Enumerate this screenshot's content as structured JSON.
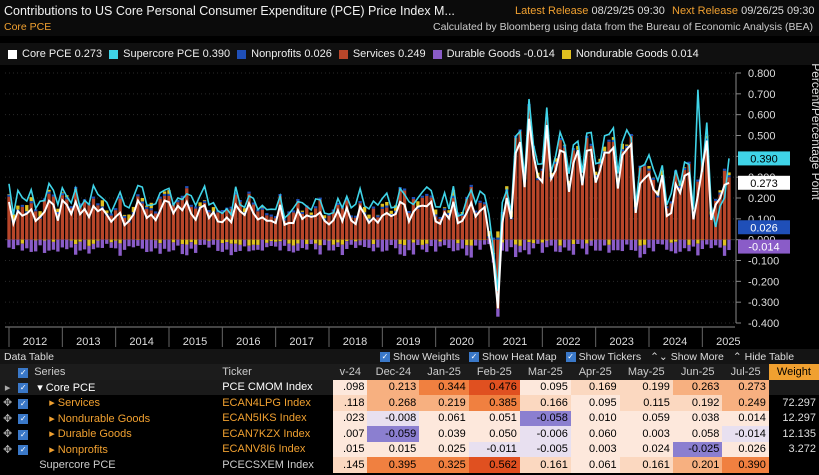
{
  "header": {
    "title": "Contributions to US Core Personal Consumer Expenditure (PCE) Price Index M...",
    "subtitle": "Core PCE",
    "latest_release_label": "Latest Release",
    "latest_release_value": "08/29/25 09:30",
    "next_release_label": "Next Release",
    "next_release_value": "09/26/25 09:30",
    "source": "Calculated by Bloomberg using data from the Bureau of Economic Analysis (BEA)"
  },
  "legend": [
    {
      "label": "Core PCE 0.273",
      "color": "#ffffff"
    },
    {
      "label": "Supercore PCE 0.390",
      "color": "#3fd4e8"
    },
    {
      "label": "Nonprofits 0.026",
      "color": "#1f4fb8"
    },
    {
      "label": "Services 0.249",
      "color": "#b8462a"
    },
    {
      "label": "Durable Goods -0.014",
      "color": "#8a5cc8"
    },
    {
      "label": "Nondurable Goods 0.014",
      "color": "#e0c020"
    }
  ],
  "chart_data": {
    "type": "bar",
    "y_axis_title": "Percent/Percentage Point",
    "ylim": [
      -0.4,
      0.8
    ],
    "y_ticks": [
      "0.800",
      "0.700",
      "0.600",
      "0.500",
      "0.400",
      "0.300",
      "0.200",
      "0.100",
      "0.000",
      "-0.100",
      "-0.200",
      "-0.300",
      "-0.400"
    ],
    "x_ticks": [
      "2012",
      "2013",
      "2014",
      "2015",
      "2016",
      "2017",
      "2018",
      "2019",
      "2020",
      "2021",
      "2022",
      "2023",
      "2024",
      "2025"
    ],
    "end_labels": [
      {
        "text": "0.390",
        "value": 0.39,
        "color": "#3fd4e8"
      },
      {
        "text": "0.273",
        "value": 0.273,
        "color": "#ffffff"
      },
      {
        "text": "0.026",
        "value": 0.026,
        "color": "#1f4fb8"
      },
      {
        "text": "-0.014",
        "value": -0.014,
        "color": "#8a5cc8"
      }
    ],
    "series_colors": {
      "core": "#ffffff",
      "supercore": "#3fd4e8",
      "services": "#b8462a",
      "durable": "#8a5cc8",
      "nondurable": "#e0c020",
      "nonprofits": "#1f4fb8"
    }
  },
  "table_bar": {
    "title": "Data Table",
    "options": [
      "Show Weights",
      "Show Heat Map",
      "Show Tickers"
    ],
    "show_more": "Show More",
    "hide_table": "Hide Table"
  },
  "table": {
    "headers": [
      "Series",
      "Ticker",
      "v-24",
      "Dec-24",
      "Jan-25",
      "Feb-25",
      "Mar-25",
      "Apr-25",
      "May-25",
      "Jun-25",
      "Jul-25",
      "Weight"
    ],
    "rows": [
      {
        "series": "Core PCE",
        "ticker": "PCE CMOM Index",
        "vals": [
          ".098",
          "0.213",
          "0.344",
          "0.476",
          "0.095",
          "0.169",
          "0.199",
          "0.263",
          "0.273"
        ],
        "weight": "",
        "core": true
      },
      {
        "series": "Services",
        "ticker": "ECAN4LPG Index",
        "vals": [
          ".118",
          "0.268",
          "0.219",
          "0.385",
          "0.166",
          "0.095",
          "0.115",
          "0.192",
          "0.249"
        ],
        "weight": "72.297"
      },
      {
        "series": "Nondurable Goods",
        "ticker": "ECAN5IKS Index",
        "vals": [
          ".023",
          "-0.008",
          "0.061",
          "0.051",
          "-0.058",
          "0.010",
          "0.059",
          "0.038",
          "0.014"
        ],
        "weight": "12.297"
      },
      {
        "series": "Durable Goods",
        "ticker": "ECAN7KZX Index",
        "vals": [
          ".007",
          "-0.059",
          "0.039",
          "0.050",
          "-0.006",
          "0.060",
          "0.003",
          "0.058",
          "-0.014"
        ],
        "weight": "12.135"
      },
      {
        "series": "Nonprofits",
        "ticker": "ECANV8I6 Index",
        "vals": [
          ".015",
          "0.015",
          "0.025",
          "-0.011",
          "-0.005",
          "0.003",
          "0.024",
          "-0.025",
          "0.026"
        ],
        "weight": "3.272"
      },
      {
        "series": "Supercore PCE",
        "ticker": "PCECSXEM Index",
        "vals": [
          ".145",
          "0.395",
          "0.325",
          "0.562",
          "0.161",
          "0.061",
          "0.161",
          "0.201",
          "0.390"
        ],
        "weight": "",
        "plain": true
      }
    ]
  }
}
